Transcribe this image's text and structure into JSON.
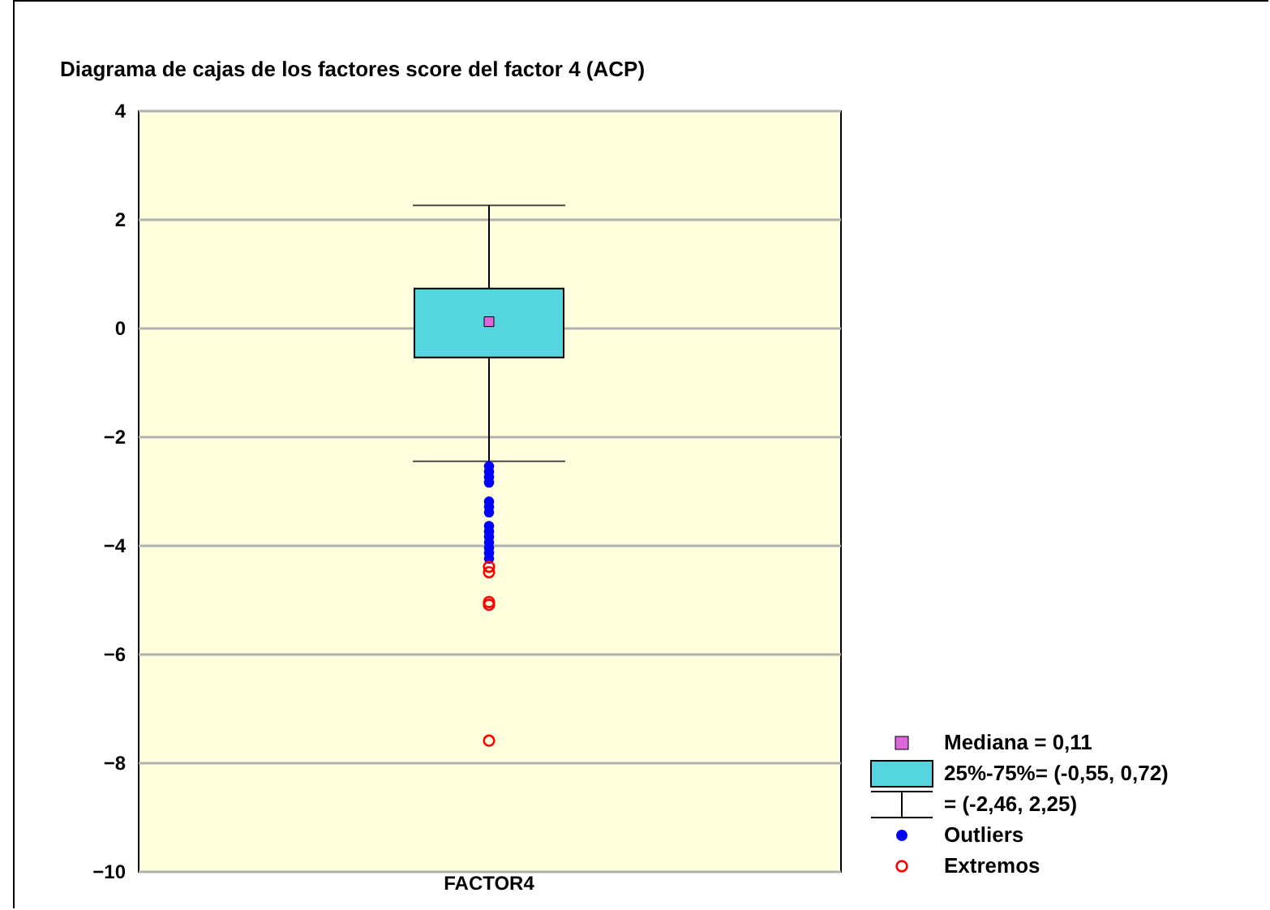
{
  "chart_data": {
    "type": "box",
    "title": "Diagrama de cajas de los factores score del factor 4 (ACP)",
    "categories": [
      "FACTOR4"
    ],
    "ylim": [
      -10,
      4
    ],
    "yticks": [
      -10,
      -8,
      -6,
      -4,
      -2,
      0,
      2,
      4
    ],
    "grid": "y",
    "legend": "bottom right",
    "annotations": [
      "Mediana = 0,11",
      "25%-75%= (-0,55, 0,72)",
      "= (-2,46, 2,25)"
    ],
    "series": [
      {
        "type": "box",
        "color": "#55d5dd",
        "boxes": [
          {
            "low": -2.46,
            "q1": -0.55,
            "median": 0.11,
            "q3": 0.72,
            "high": 2.25
          }
        ]
      },
      {
        "type": "scatter",
        "name": "Outliers",
        "color": "#0000ff",
        "marker": "circle",
        "x": [
          "FACTOR4",
          "FACTOR4",
          "FACTOR4",
          "FACTOR4",
          "FACTOR4",
          "FACTOR4",
          "FACTOR4",
          "FACTOR4",
          "FACTOR4",
          "FACTOR4",
          "FACTOR4",
          "FACTOR4",
          "FACTOR4",
          "FACTOR4"
        ],
        "values": [
          -2.55,
          -2.65,
          -2.75,
          -2.85,
          -3.2,
          -3.3,
          -3.4,
          -3.65,
          -3.75,
          -3.85,
          -3.95,
          -4.05,
          -4.15,
          -4.25
        ]
      },
      {
        "type": "scatter",
        "name": "Extremos",
        "color": "#ff0000",
        "marker": "circle",
        "x": [
          "FACTOR4",
          "FACTOR4",
          "FACTOR4",
          "FACTOR4",
          "FACTOR4"
        ],
        "values": [
          -4.4,
          -4.5,
          -5.05,
          -5.1,
          -7.6
        ]
      }
    ]
  }
}
